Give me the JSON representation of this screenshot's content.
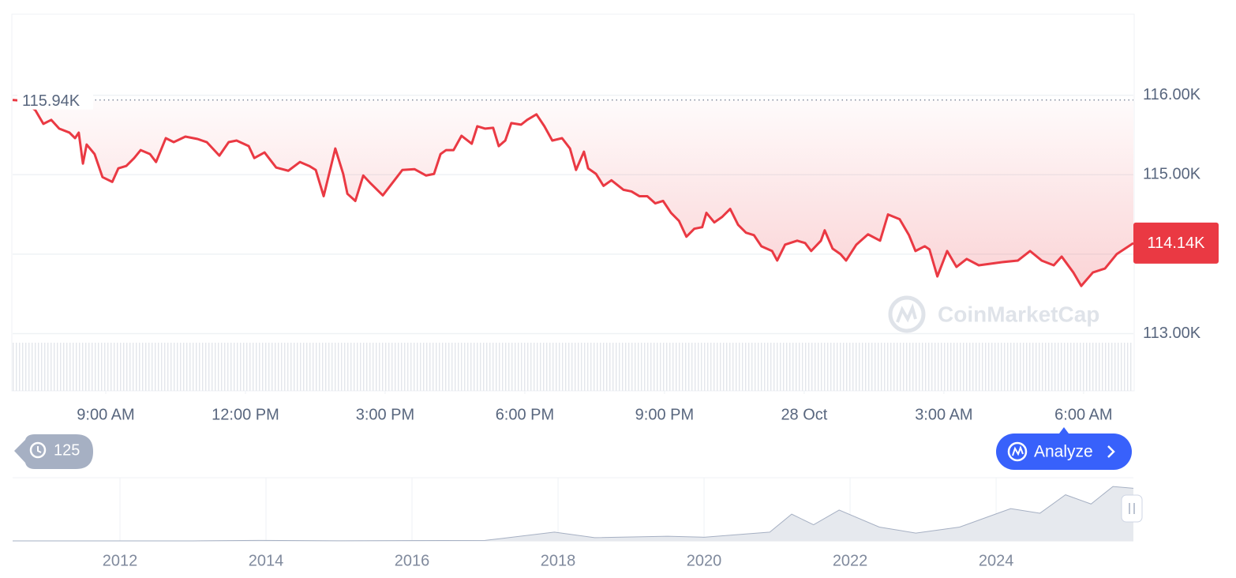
{
  "chart_data": [
    {
      "type": "line",
      "color": "#ea3943",
      "x": [
        7.0,
        7.24,
        7.49,
        7.66,
        7.83,
        8.0,
        8.22,
        8.34,
        8.42,
        8.51,
        8.59,
        8.76,
        8.93,
        9.14,
        9.27,
        9.44,
        9.61,
        9.75,
        9.95,
        10.08,
        10.29,
        10.46,
        10.71,
        10.97,
        11.17,
        11.44,
        11.64,
        11.81,
        12.07,
        12.19,
        12.41,
        12.66,
        12.92,
        13.17,
        13.37,
        13.51,
        13.68,
        13.93,
        14.1,
        14.19,
        14.36,
        14.53,
        14.69,
        14.95,
        15.2,
        15.37,
        15.63,
        15.88,
        16.05,
        16.19,
        16.31,
        16.47,
        16.64,
        16.86,
        16.98,
        17.15,
        17.32,
        17.44,
        17.58,
        17.71,
        17.92,
        18.05,
        18.25,
        18.42,
        18.59,
        18.8,
        18.97,
        19.1,
        19.27,
        19.36,
        19.53,
        19.69,
        19.86,
        20.12,
        20.29,
        20.46,
        20.63,
        20.8,
        20.97,
        21.14,
        21.31,
        21.47,
        21.64,
        21.81,
        21.9,
        22.07,
        22.24,
        22.41,
        22.58,
        22.75,
        22.92,
        23.08,
        23.31,
        23.42,
        23.59,
        23.85,
        24.02,
        24.15,
        24.36,
        24.44,
        24.61,
        24.78,
        24.9,
        25.12,
        25.37,
        25.63,
        25.8,
        26.05,
        26.25,
        26.39,
        26.59,
        26.69,
        26.86,
        27.07,
        27.27,
        27.49,
        27.75,
        28.0,
        28.25,
        28.59,
        28.85,
        29.1,
        29.36,
        29.53,
        29.78,
        29.95,
        30.2,
        30.46,
        30.71,
        31.07
      ],
      "values": [
        115940,
        115930,
        115810,
        115640,
        115690,
        115580,
        115530,
        115460,
        115530,
        115140,
        115380,
        115260,
        114970,
        114910,
        115080,
        115110,
        115210,
        115310,
        115260,
        115160,
        115460,
        115410,
        115480,
        115450,
        115410,
        115240,
        115410,
        115430,
        115360,
        115210,
        115280,
        115090,
        115050,
        115160,
        115110,
        115060,
        114730,
        115330,
        115010,
        114760,
        114670,
        114990,
        114890,
        114740,
        114930,
        115060,
        115070,
        114990,
        115010,
        115260,
        115310,
        115310,
        115490,
        115390,
        115610,
        115580,
        115590,
        115360,
        115430,
        115650,
        115630,
        115690,
        115760,
        115610,
        115430,
        115460,
        115330,
        115060,
        115290,
        115080,
        115010,
        114860,
        114930,
        114810,
        114790,
        114730,
        114730,
        114640,
        114670,
        114520,
        114420,
        114220,
        114320,
        114340,
        114520,
        114400,
        114470,
        114570,
        114370,
        114270,
        114240,
        114100,
        114040,
        113920,
        114120,
        114170,
        114140,
        114040,
        114170,
        114300,
        114070,
        114000,
        113920,
        114120,
        114250,
        114170,
        114500,
        114440,
        114240,
        114040,
        114100,
        114060,
        113720,
        114040,
        113840,
        113940,
        113860,
        113880,
        113900,
        113920,
        114040,
        113920,
        113860,
        113970,
        113770,
        113600,
        113770,
        113820,
        114000,
        114140
      ],
      "xlim": [
        7,
        31.07
      ],
      "xticks": [
        {
          "value": 9,
          "label": "9:00 AM"
        },
        {
          "value": 12,
          "label": "12:00 PM"
        },
        {
          "value": 15,
          "label": "3:00 PM"
        },
        {
          "value": 18,
          "label": "6:00 PM"
        },
        {
          "value": 21,
          "label": "9:00 PM"
        },
        {
          "value": 24,
          "label": "28 Oct"
        },
        {
          "value": 27,
          "label": "3:00 AM"
        },
        {
          "value": 30,
          "label": "6:00 AM"
        }
      ],
      "ylim": [
        112280,
        117020
      ],
      "yticks": [
        {
          "value": 113000,
          "label": "113.00K"
        },
        {
          "value": 114000,
          "label": "114.00K"
        },
        {
          "value": 115000,
          "label": "115.00K"
        },
        {
          "value": 116000,
          "label": "116.00K"
        }
      ],
      "grid": true,
      "reference": {
        "value": 115940,
        "label": "115.94K"
      },
      "last_price": {
        "value": 114140,
        "label": "114.14K"
      }
    },
    {
      "type": "area",
      "color": "#a6b0c3",
      "fill": "#e6e9ee",
      "x": [
        2010.53,
        2013.0,
        2013.9,
        2015.0,
        2017.0,
        2017.95,
        2018.5,
        2019.5,
        2020.0,
        2020.9,
        2021.2,
        2021.5,
        2021.85,
        2022.4,
        2022.9,
        2023.5,
        2024.2,
        2024.6,
        2024.95,
        2025.3,
        2025.6,
        2025.88
      ],
      "values": [
        0,
        100,
        1000,
        300,
        1000,
        19000,
        7000,
        10000,
        8000,
        19000,
        58000,
        35000,
        67000,
        30000,
        17000,
        30000,
        70000,
        60000,
        100000,
        80000,
        118000,
        114000
      ],
      "xlim": [
        2010.53,
        2025.88
      ],
      "xticks": [
        2012,
        2014,
        2016,
        2018,
        2020,
        2022,
        2024
      ],
      "ylim": [
        0,
        137000
      ]
    }
  ],
  "ui": {
    "history_count": 125,
    "analyze_button": "Analyze",
    "watermark": "CoinMarketCap"
  }
}
